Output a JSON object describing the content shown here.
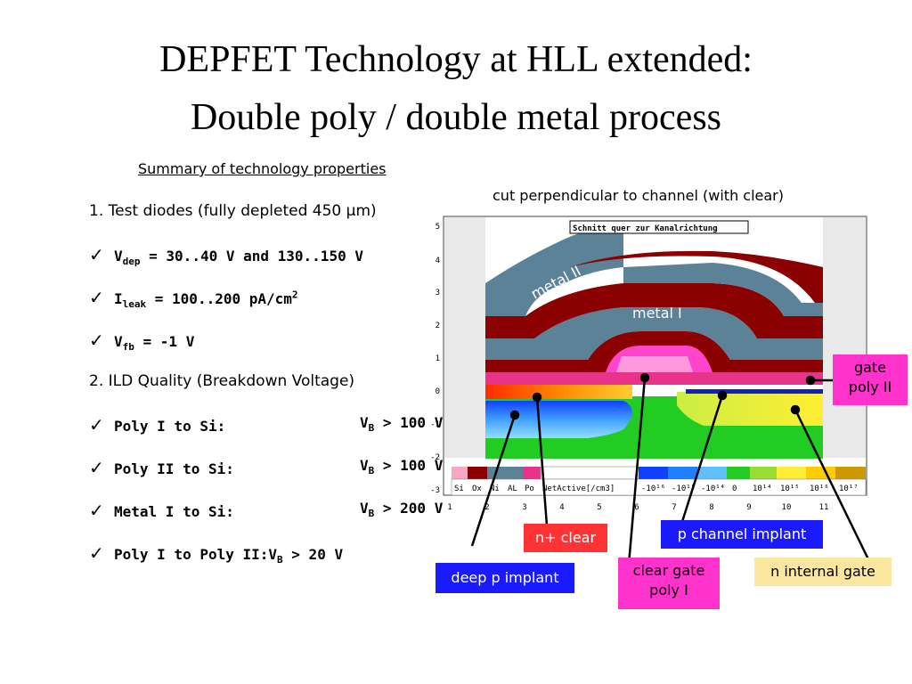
{
  "title": {
    "line1": "DEPFET Technology at HLL extended:",
    "line2": "Double poly / double metal process"
  },
  "summary_heading": "Summary of technology properties",
  "section1": "1. Test diodes (fully depleted 450 µm)",
  "checks1": [
    {
      "sym": "V",
      "sub": "dep",
      "rest": " = 30..40 V and 130..150 V"
    },
    {
      "sym": "I",
      "sub": "leak",
      "rest": " = 100..200 pA/cm",
      "sup": "2"
    },
    {
      "sym": "V",
      "sub": "fb",
      "rest": " = -1 V"
    }
  ],
  "section2": "2. ILD Quality (Breakdown Voltage)",
  "checks2": [
    {
      "label": "Poly I to Si:",
      "vb": "V",
      "vb_sub": "B",
      "vb_rest": " > 100 V"
    },
    {
      "label": "Poly II to Si:",
      "vb": "V",
      "vb_sub": "B",
      "vb_rest": " > 100 V"
    },
    {
      "label": "Metal I to Si:",
      "vb": "V",
      "vb_sub": "B",
      "vb_rest": " > 200 V"
    },
    {
      "label": "Poly I to Poly II:",
      "vb": "V",
      "vb_sub": "B",
      "vb_rest": " > 20 V"
    }
  ],
  "check_icon": "check-mark-icon",
  "figure": {
    "caption": "cut perpendicular to channel (with clear)",
    "plot_title": "Schnitt quer zur Kanalrichtung",
    "y_ticks": [
      "5",
      "4",
      "3",
      "2",
      "1",
      "0",
      "-1",
      "-2",
      "-3"
    ],
    "x_ticks": [
      "1",
      "2",
      "3",
      "4",
      "5",
      "6",
      "7",
      "8",
      "9",
      "10",
      "11"
    ],
    "layer_metal2": "metal II",
    "layer_metal1": "metal I",
    "legend_materials": [
      "Si",
      "Ox",
      "Ni",
      "AL",
      "Po"
    ],
    "legend_title": "NetActive[/cm3]",
    "legend_scale": [
      "-10¹⁶",
      "-10¹⁵",
      "-10¹⁴",
      "0",
      "10¹⁴",
      "10¹⁵",
      "10¹⁶",
      "10¹⁷"
    ]
  },
  "labels": {
    "gate_poly2": "gate poly II",
    "n_clear": "n+ clear",
    "p_channel": "p channel implant",
    "deep_p": "deep p implant",
    "clear_gate": "clear gate poly I",
    "n_internal": "n internal gate"
  },
  "colors": {
    "magenta": "#ff33cc",
    "red": "#ff3333",
    "blue": "#1a1aff",
    "cream": "#fbe7a0",
    "metal": "#5b8296",
    "poly": "#8b0000",
    "silicon": "#22cc22"
  }
}
